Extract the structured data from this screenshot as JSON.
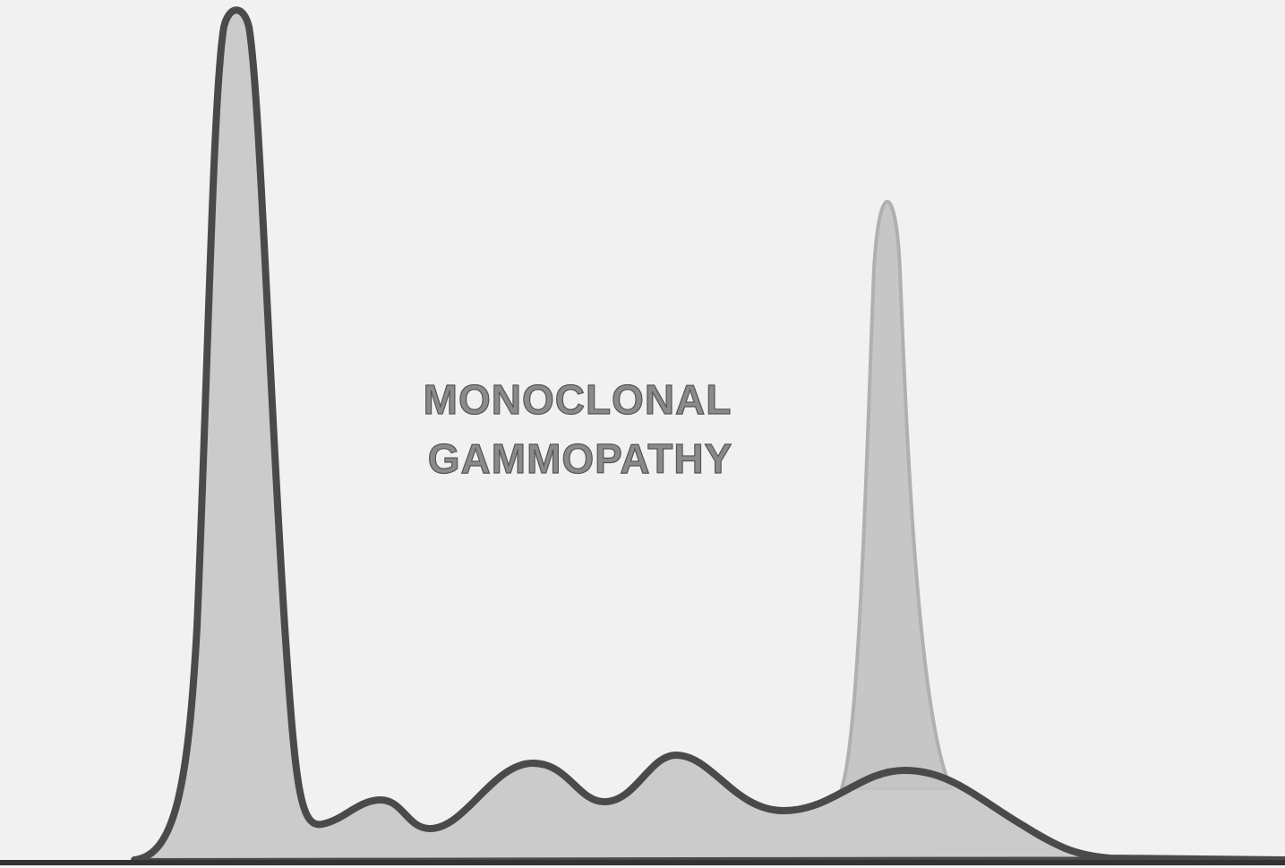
{
  "label": {
    "lines": [
      "MONOCLONAL",
      "GAMMOPATHY"
    ]
  }
}
